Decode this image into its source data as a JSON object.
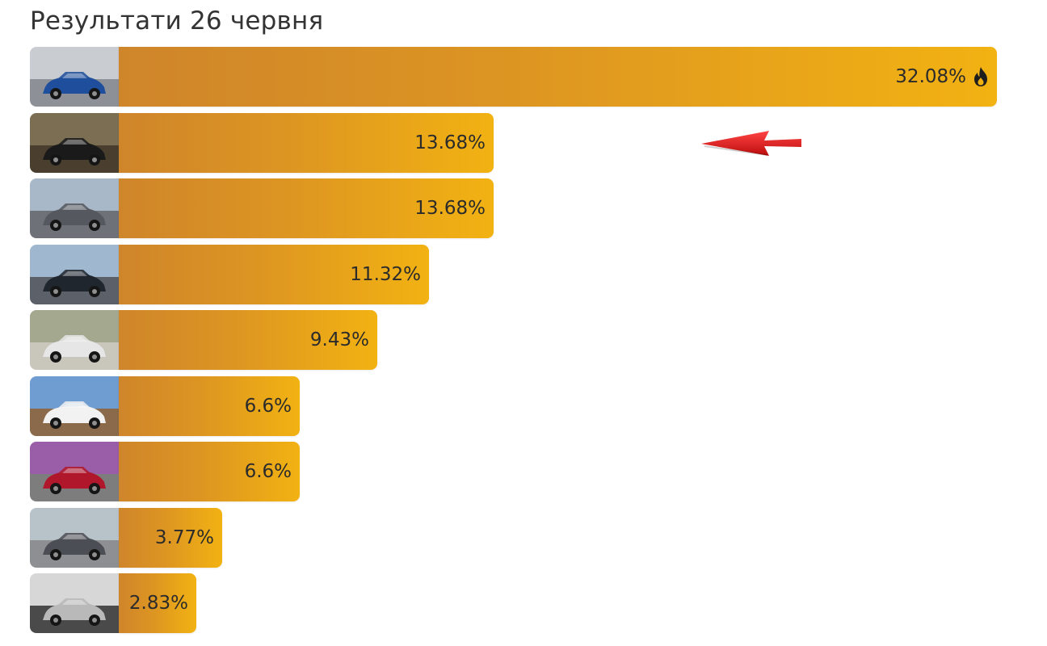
{
  "header": {
    "title": "Результати 26 червня"
  },
  "chart_data": {
    "type": "bar",
    "orientation": "horizontal",
    "categories": [
      "",
      "",
      "",
      "",
      "",
      "",
      "",
      "",
      ""
    ],
    "values": [
      32.08,
      13.68,
      13.68,
      11.32,
      9.43,
      6.6,
      6.6,
      3.77,
      2.83
    ],
    "labels": [
      "32.08%",
      "13.68%",
      "13.68%",
      "11.32%",
      "9.43%",
      "6.6%",
      "6.6%",
      "3.77%",
      "2.83%"
    ],
    "title": "Результати 26 червня",
    "xlim": [
      0,
      32.08
    ],
    "bar_colors": [
      "#cf852a",
      "#f2b212"
    ],
    "leader_icon": "fire-icon",
    "highlight_index": 1,
    "highlight_marker": "red-arrow-icon",
    "grid": false
  },
  "thumbnail_icons": [
    "car-photo-icon",
    "car-photo-icon",
    "car-photo-icon",
    "car-photo-icon",
    "car-photo-icon",
    "car-photo-icon",
    "car-photo-icon",
    "car-photo-icon",
    "car-photo-icon"
  ]
}
